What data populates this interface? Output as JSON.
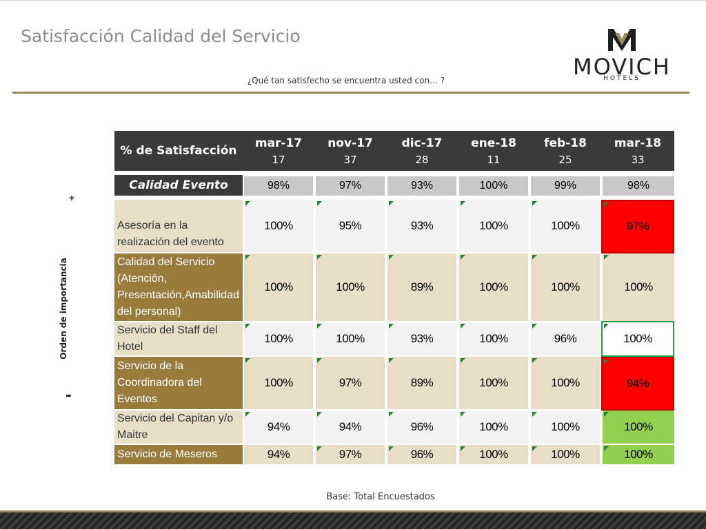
{
  "header": {
    "title": "Satisfacción Calidad del Servicio",
    "subtitle": "¿Qué tan satisfecho se encuentra usted con… ?"
  },
  "logo": {
    "word": "MOVICH",
    "sub": "HOTELS"
  },
  "axis": {
    "plus": "+",
    "minus": "-",
    "label": "Orden de importancia"
  },
  "table": {
    "corner": "% de Satisfacción",
    "columns": [
      {
        "month": "mar-17",
        "n": "17"
      },
      {
        "month": "nov-17",
        "n": "37"
      },
      {
        "month": "dic-17",
        "n": "28"
      },
      {
        "month": "ene-18",
        "n": "11"
      },
      {
        "month": "feb-18",
        "n": "25"
      },
      {
        "month": "mar-18",
        "n": "33"
      }
    ],
    "summary": {
      "label": "Calidad Evento",
      "values": [
        "98%",
        "97%",
        "93%",
        "100%",
        "99%",
        "98%"
      ]
    },
    "rows": [
      {
        "label": "Asesoría en la realización del evento",
        "values": [
          "100%",
          "95%",
          "93%",
          "100%",
          "100%",
          "97%"
        ],
        "highlight": "red"
      },
      {
        "label": "Calidad del Servicio (Atención, Presentación,Amabilidad del personal)",
        "values": [
          "100%",
          "100%",
          "89%",
          "100%",
          "100%",
          "100%"
        ],
        "highlight": ""
      },
      {
        "label": "Servicio del Staff del Hotel",
        "values": [
          "100%",
          "100%",
          "93%",
          "100%",
          "96%",
          "100%"
        ],
        "highlight": "green-outline"
      },
      {
        "label": "Servicio de la Coordinadora del Eventos",
        "values": [
          "100%",
          "97%",
          "89%",
          "100%",
          "100%",
          "94%"
        ],
        "highlight": "red"
      },
      {
        "label": "Servicio del Capitan y/o Maitre",
        "values": [
          "94%",
          "94%",
          "96%",
          "100%",
          "100%",
          "100%"
        ],
        "highlight": "green"
      },
      {
        "label": "Servicio de Meseros",
        "values": [
          "94%",
          "97%",
          "96%",
          "100%",
          "100%",
          "100%"
        ],
        "highlight": "green"
      }
    ]
  },
  "footer": {
    "base": "Base: Total Encuestados"
  },
  "colors": {
    "gold": "#998963",
    "dark_header": "#3a3a3a",
    "beige": "#e8ddc7",
    "brown": "#9b7b3c",
    "red": "#ff0000",
    "green": "#92d050"
  }
}
